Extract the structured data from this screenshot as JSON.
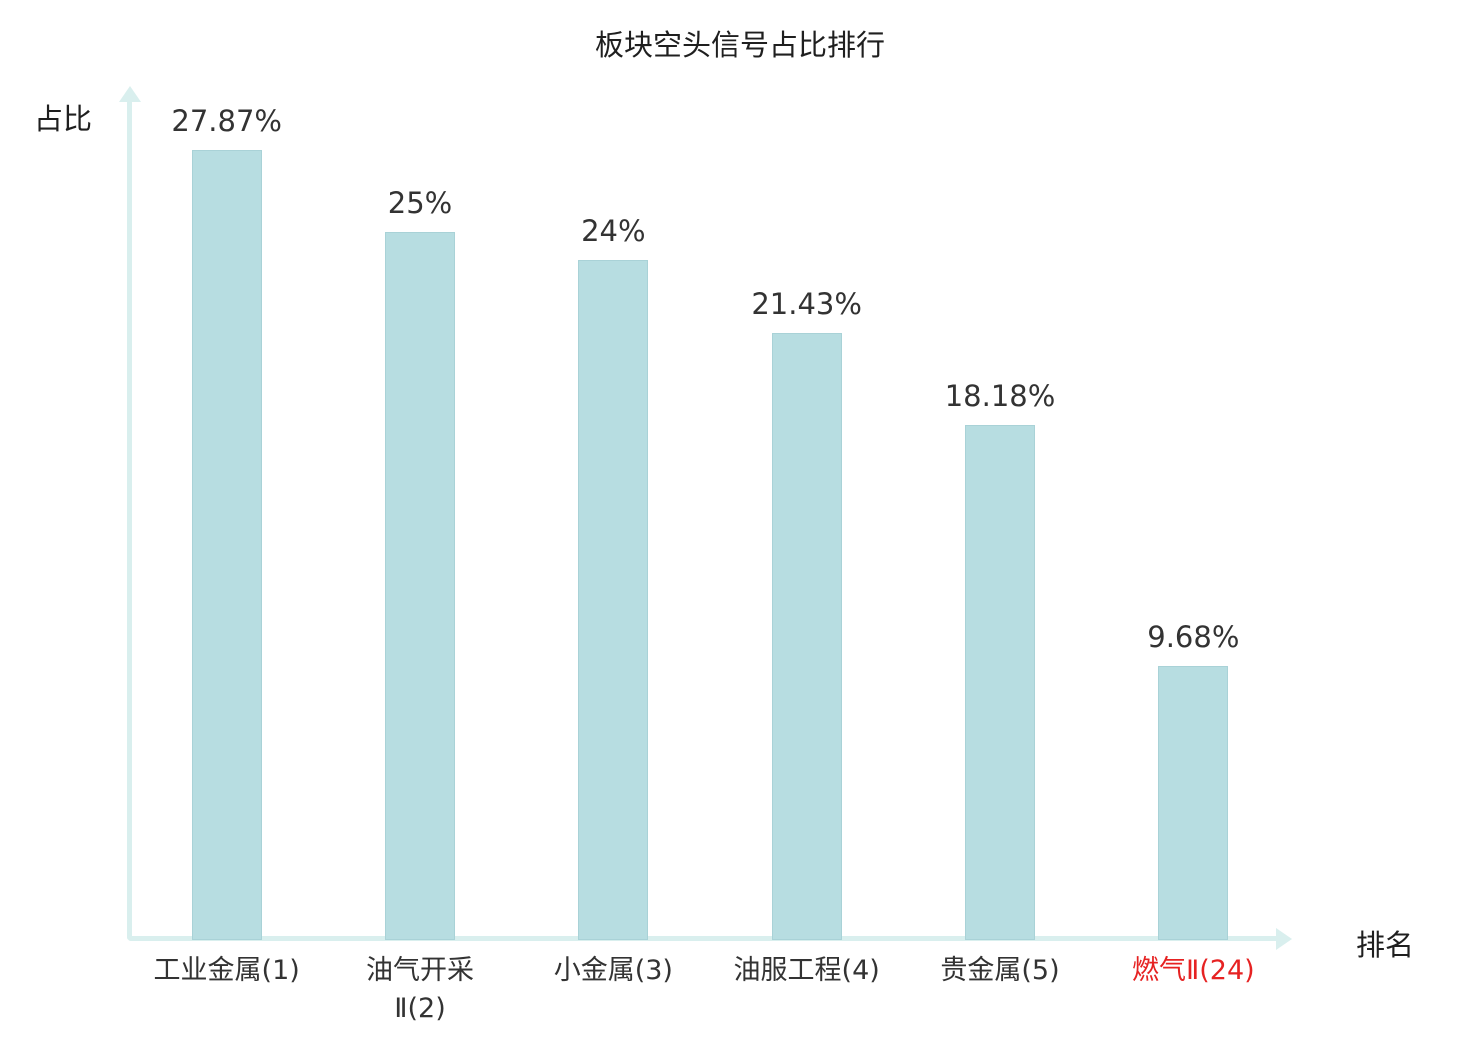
{
  "chart_data": {
    "type": "bar",
    "title": "板块空头信号占比排行",
    "xlabel": "排名",
    "ylabel": "占比",
    "categories": [
      "工业金属(1)",
      "油气开采\nⅡ(2)",
      "小金属(3)",
      "油服工程(4)",
      "贵金属(5)",
      "燃气Ⅱ(24)"
    ],
    "values": [
      27.87,
      25,
      24,
      21.43,
      18.18,
      9.68
    ],
    "value_labels": [
      "27.87%",
      "25%",
      "24%",
      "21.43%",
      "18.18%",
      "9.68%"
    ],
    "ylim": [
      0,
      30
    ],
    "grid": false,
    "legend": "none",
    "highlight_index": 5,
    "highlight_color": "#e62222",
    "bar_color": "#b7dde1",
    "axis_color": "#d9efee",
    "text_color": "#333333"
  }
}
